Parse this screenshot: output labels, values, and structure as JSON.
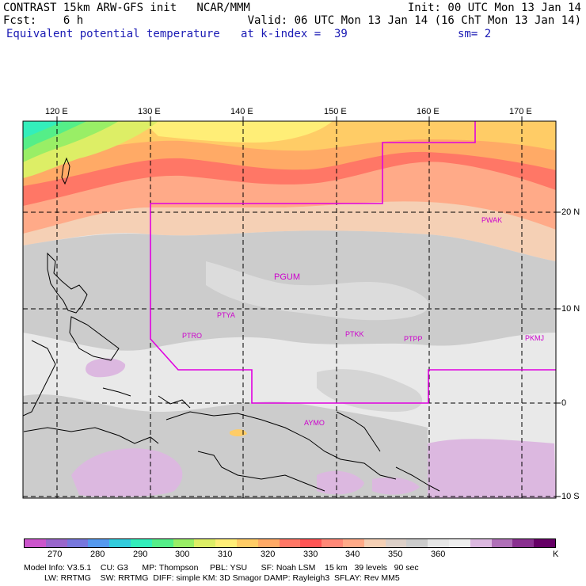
{
  "header": {
    "line1_left": "CONTRAST 15km ARW-GFS init   NCAR/MMM",
    "line1_right": "Init: 00 UTC Mon 13 Jan 14",
    "line2_left": "Fcst:    6 h",
    "line2_right": "Valid: 06 UTC Mon 13 Jan 14 (16 ChT Mon 13 Jan 14)",
    "line3_left": "Equivalent potential temperature",
    "line3_mid": "at k-index =  39",
    "line3_right": "sm= 2"
  },
  "axes": {
    "lon_labels": [
      "120 E",
      "130 E",
      "140 E",
      "150 E",
      "160 E",
      "170 E"
    ],
    "lat_labels": [
      "20 N",
      "10 N",
      "0",
      "10 S"
    ]
  },
  "stations": [
    "PWAK",
    "PGUM",
    "PTYA",
    "PTRO",
    "PTKK",
    "PTPP",
    "PKMJ",
    "AYMO"
  ],
  "colorbar": {
    "colors": [
      "#cc55cc",
      "#9966cc",
      "#7777dd",
      "#5599ee",
      "#33ccdd",
      "#33eebb",
      "#55ee88",
      "#99ee66",
      "#ddee66",
      "#ffee77",
      "#ffcc66",
      "#ffaa66",
      "#ff7766",
      "#ff5555",
      "#ff8877",
      "#ffaa88",
      "#f5d0b5",
      "#ddd0c8",
      "#cccccc",
      "#e6e6e6",
      "#eeeeee",
      "#dcb8e0",
      "#b070b8",
      "#8a3090",
      "#660066"
    ],
    "labels": [
      "270",
      "280",
      "290",
      "300",
      "310",
      "320",
      "330",
      "340",
      "350",
      "360",
      "K"
    ]
  },
  "model_info": {
    "line1": "Model Info: V3.5.1    CU: G3      MP: Thompson     PBL: YSU      SF: Noah LSM    15 km   39 levels   90 sec",
    "line2": "LW: RRTMG    SW: RRTMG  DIFF: simple KM: 3D Smagor DAMP: Rayleigh3  SFLAY: Rev MM5"
  }
}
